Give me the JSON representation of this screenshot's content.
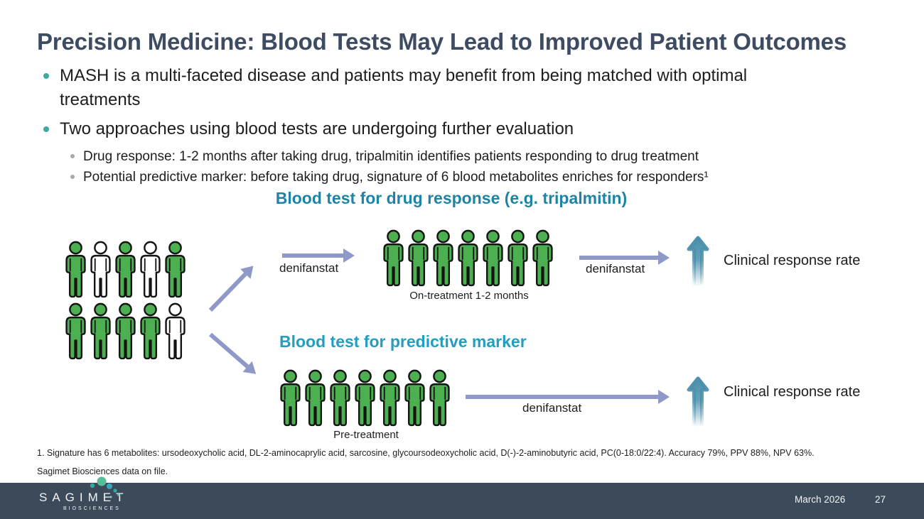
{
  "header": {
    "title": "Precision Medicine: Blood Tests May Lead to Improved Patient Outcomes"
  },
  "bullets": [
    {
      "level": 1,
      "text": "MASH is a multi-faceted disease and patients may benefit from being matched with optimal treatments"
    },
    {
      "level": 1,
      "text": "Two approaches using blood tests are undergoing further evaluation"
    },
    {
      "level": 2,
      "text": "Drug response: 1-2 months after taking drug, tripalmitin identifies patients responding to drug treatment"
    },
    {
      "level": 2,
      "text": "Potential predictive marker: before taking drug, signature of 6 blood metabolites enriches for responders¹"
    }
  ],
  "flow": {
    "heading_top": "Blood test for drug response (e.g. tripalmitin)",
    "heading_bottom": "Blood test for predictive marker",
    "drug_label_1": "denifanstat",
    "drug_label_2": "denifanstat",
    "drug_label_3": "denifanstat",
    "on_treatment_label": "On-treatment 1-2 months",
    "pre_treatment_label": "Pre-treatment",
    "outcome_top": "Clinical response rate",
    "outcome_bottom": "Clinical response rate",
    "groups": {
      "baseline": {
        "rows": [
          [
            "green",
            "white",
            "green",
            "white",
            "green"
          ],
          [
            "green",
            "green",
            "green",
            "green",
            "white"
          ]
        ]
      },
      "on_treatment": {
        "rows": [
          [
            "green",
            "green",
            "green",
            "green",
            "green",
            "green",
            "green"
          ]
        ]
      },
      "pre_treatment": {
        "rows": [
          [
            "green",
            "green",
            "green",
            "green",
            "green",
            "green",
            "green"
          ]
        ]
      }
    }
  },
  "footnotes": {
    "line1": "1. Signature has 6 metabolites: ursodeoxycholic acid, DL-2-aminocaprylic acid, sarcosine, glycoursodeoxycholic acid, D(-)-2-aminobutyric acid, PC(0-18:0/22:4). Accuracy 79%, PPV 88%, NPV 63%.",
    "line2": "Sagimet Biosciences data on file."
  },
  "footer": {
    "logo_text": "SAGIMET",
    "logo_subtext": "BIOSCIENCES",
    "date": "March 2026",
    "page": "27"
  },
  "colors": {
    "title_text": "#3e4c63",
    "body_text": "#1d1d1d",
    "bullet_teal": "#3fa8a5",
    "bullet_gray": "#a9a9a9",
    "heading_teal_1": "#1d84a6",
    "heading_teal_2": "#219ec0",
    "person_green": "#4cb050",
    "person_white": "#ffffff",
    "person_outline": "#141414",
    "flow_arrow": "#8e99c7",
    "increase_arrow": "#4a8fac",
    "footer_bg": "#3d4a5a",
    "footer_text": "#f2f4f6"
  }
}
